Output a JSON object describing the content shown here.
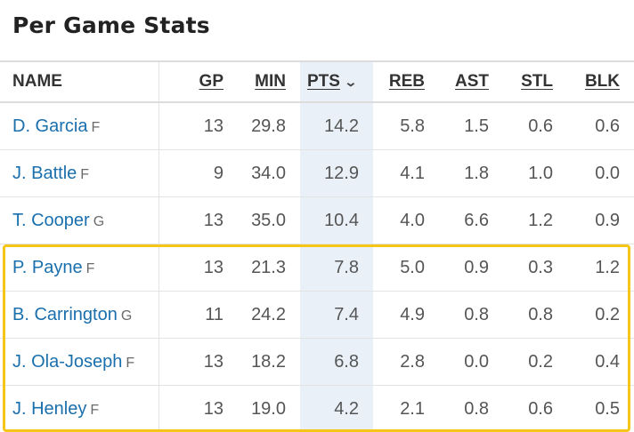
{
  "title": "Per Game Stats",
  "columns": {
    "name": "NAME",
    "gp": "GP",
    "min": "MIN",
    "pts": "PTS",
    "reb": "REB",
    "ast": "AST",
    "stl": "STL",
    "blk": "BLK"
  },
  "sort_indicator": "chevron-down-icon",
  "colors": {
    "link": "#1a6fad",
    "sorted_column_bg": "#e9f0f8",
    "highlight_border": "#f5c518"
  },
  "players": [
    {
      "name": "D. Garcia",
      "pos": "F",
      "gp": "13",
      "min": "29.8",
      "pts": "14.2",
      "reb": "5.8",
      "ast": "1.5",
      "stl": "0.6",
      "blk": "0.6"
    },
    {
      "name": "J. Battle",
      "pos": "F",
      "gp": "9",
      "min": "34.0",
      "pts": "12.9",
      "reb": "4.1",
      "ast": "1.8",
      "stl": "1.0",
      "blk": "0.0"
    },
    {
      "name": "T. Cooper",
      "pos": "G",
      "gp": "13",
      "min": "35.0",
      "pts": "10.4",
      "reb": "4.0",
      "ast": "6.6",
      "stl": "1.2",
      "blk": "0.9"
    },
    {
      "name": "P. Payne",
      "pos": "F",
      "gp": "13",
      "min": "21.3",
      "pts": "7.8",
      "reb": "5.0",
      "ast": "0.9",
      "stl": "0.3",
      "blk": "1.2"
    },
    {
      "name": "B. Carrington",
      "pos": "G",
      "gp": "11",
      "min": "24.2",
      "pts": "7.4",
      "reb": "4.9",
      "ast": "0.8",
      "stl": "0.8",
      "blk": "0.2"
    },
    {
      "name": "J. Ola-Joseph",
      "pos": "F",
      "gp": "13",
      "min": "18.2",
      "pts": "6.8",
      "reb": "2.8",
      "ast": "0.0",
      "stl": "0.2",
      "blk": "0.4"
    },
    {
      "name": "J. Henley",
      "pos": "F",
      "gp": "13",
      "min": "19.0",
      "pts": "4.2",
      "reb": "2.1",
      "ast": "0.8",
      "stl": "0.6",
      "blk": "0.5"
    }
  ]
}
